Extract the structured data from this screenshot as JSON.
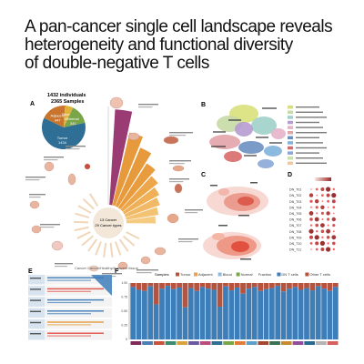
{
  "title_lines": [
    "A pan-cancer single cell landscape reveals",
    "heterogeneity and functional diversity",
    "of double-negative T cells"
  ],
  "panel_labels": [
    "A",
    "B",
    "C",
    "D",
    "E",
    "F"
  ],
  "panel_a": {
    "header_line1": "1432 individuals",
    "header_line2": "2365 Samples",
    "pie": [
      {
        "label": "Tumor",
        "sublabel": "1434",
        "value": 1434,
        "color": "#2f6f95"
      },
      {
        "label": "Adjacent",
        "sublabel": "447",
        "value": 447,
        "color": "#c9752d"
      },
      {
        "label": "Blood",
        "sublabel": "143",
        "value": 143,
        "color": "#e0b33a"
      },
      {
        "label": "Normal",
        "sublabel": "341",
        "value": 341,
        "color": "#7aa64a"
      }
    ],
    "center_line1": "13 Cancer",
    "center_line2": "29 Cancer types",
    "footer": "Cancer Cancer/Healthy/Adjacent tissue"
  },
  "panel_b": {
    "legend_rows": 12
  },
  "panel_d": {
    "row_labels": [
      "DN_T01",
      "DN_T02",
      "DN_T03",
      "DN_T04",
      "DN_T05",
      "DN_T06",
      "DN_T07",
      "DN_T08",
      "DN_T09",
      "DN_T10",
      "DN_T11"
    ]
  },
  "panel_f": {
    "legend_title": "Samples",
    "legend_items": [
      {
        "label": "Tumor",
        "color": "#b5533f"
      },
      {
        "label": "Adjacent",
        "color": "#e6a25b"
      },
      {
        "label": "Blood",
        "color": "#8fb9d8"
      },
      {
        "label": "Normal",
        "color": "#7aa64a"
      }
    ],
    "legend_title2": "Fraction",
    "legend_items2": [
      {
        "label": "DN T cells",
        "color": "#3d7db8"
      },
      {
        "label": "Other T cells",
        "color": "#b5533f"
      }
    ],
    "y_ticks": [
      "0",
      "0.25",
      "0.50",
      "0.75",
      "1.00"
    ],
    "bar_fractions": [
      0.93,
      0.88,
      0.86,
      0.94,
      0.62,
      0.9,
      0.95,
      0.89,
      0.92,
      0.57,
      0.91,
      0.86,
      0.93,
      0.9,
      0.88,
      0.58,
      0.94,
      0.87,
      0.92,
      0.81,
      0.9,
      0.93,
      0.86,
      0.89,
      0.91,
      0.95,
      0.85,
      0.9,
      0.93,
      0.88,
      0.91,
      0.87,
      0.94,
      0.9,
      0.86,
      0.93
    ],
    "x_colors": [
      "#7b2b58",
      "#4a7fb3",
      "#c8533b",
      "#3b8b6e",
      "#d9a33a",
      "#6a5aa0",
      "#b84f7a",
      "#2f6f95",
      "#7aa64a",
      "#e07b39",
      "#5c9fc8",
      "#a3462f",
      "#3a6f51",
      "#c78b2f",
      "#8f4e9a",
      "#256a8f",
      "#b3b3b3",
      "#d65f5f"
    ]
  },
  "chart_data": [
    {
      "type": "pie",
      "title": "",
      "categories": [
        "Tumor",
        "Adjacent",
        "Blood",
        "Normal"
      ],
      "values": [
        1434,
        447,
        143,
        341
      ]
    },
    {
      "type": "bar",
      "title": "",
      "xlabel": "",
      "ylabel": "",
      "ylim": [
        0,
        1
      ],
      "series": [
        {
          "name": "DN T cells",
          "values": [
            0.93,
            0.88,
            0.86,
            0.94,
            0.62,
            0.9,
            0.95,
            0.89,
            0.92,
            0.57,
            0.91,
            0.86,
            0.93,
            0.9,
            0.88,
            0.58,
            0.94,
            0.87,
            0.92,
            0.81,
            0.9,
            0.93,
            0.86,
            0.89,
            0.91,
            0.95,
            0.85,
            0.9,
            0.93,
            0.88,
            0.91,
            0.87,
            0.94,
            0.9,
            0.86,
            0.93
          ]
        }
      ]
    }
  ],
  "colors": {
    "accent_orange": "#e79a3b",
    "accent_purple": "#9a3c73",
    "panel_f_blue": "#3d7db8",
    "panel_f_red": "#b5533f"
  }
}
